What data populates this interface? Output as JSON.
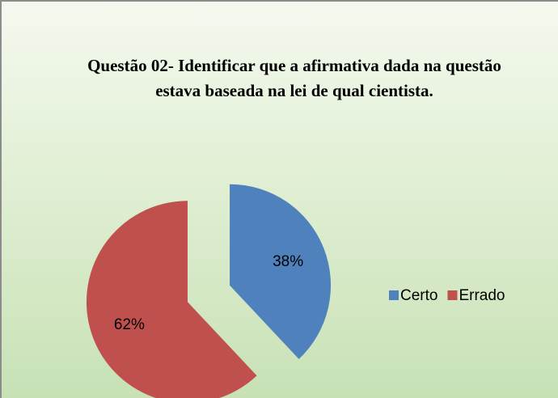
{
  "chart_data": {
    "type": "pie",
    "title": "Questão 02- Identificar que a afirmativa dada na questão estava baseada na lei de qual cientista.",
    "categories": [
      "Certo",
      "Errado"
    ],
    "values": [
      38,
      62
    ],
    "value_labels": [
      "38%",
      "62%"
    ],
    "colors": [
      "#4f81bd",
      "#c0504d"
    ],
    "legend": "right",
    "exploded": true
  }
}
